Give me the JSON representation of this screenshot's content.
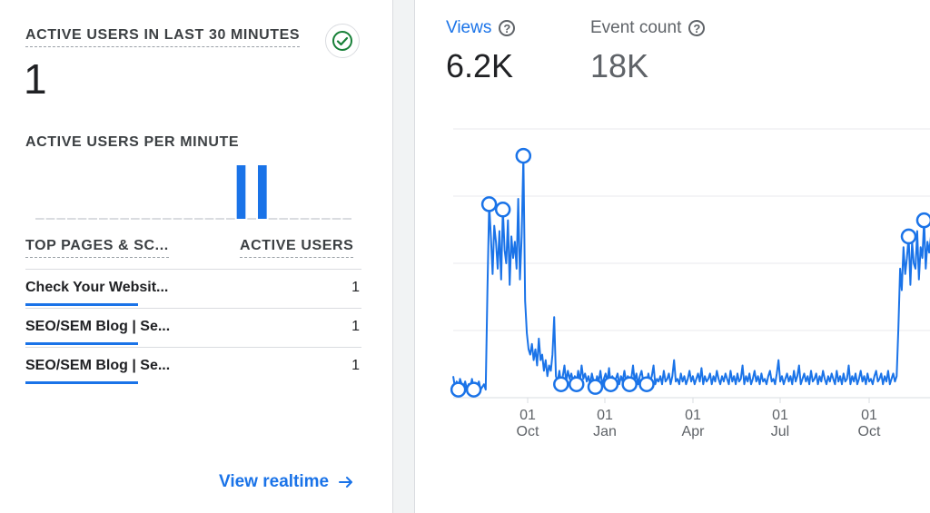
{
  "realtime": {
    "title": "ACTIVE USERS IN LAST 30 MINUTES",
    "active_users": "1",
    "status_icon": "check-circle-icon",
    "per_minute_title": "ACTIVE USERS PER MINUTE",
    "per_minute_counts": [
      0,
      0,
      0,
      0,
      0,
      0,
      0,
      0,
      0,
      0,
      0,
      0,
      0,
      0,
      0,
      0,
      0,
      0,
      0,
      1,
      0,
      1,
      0,
      0,
      0,
      0,
      0,
      0,
      0,
      0
    ],
    "table": {
      "col_page": "TOP PAGES & SC...",
      "col_users": "ACTIVE USERS",
      "rows": [
        {
          "name": "Check Your Websit...",
          "count": "1"
        },
        {
          "name": "SEO/SEM Blog | Se...",
          "count": "1"
        },
        {
          "name": "SEO/SEM Blog | Se...",
          "count": "1"
        }
      ]
    },
    "view_realtime_label": "View realtime",
    "accent_color": "#1a73e8"
  },
  "metrics": {
    "views_label": "Views",
    "views_value": "6.2K",
    "events_label": "Event count",
    "events_value": "18K"
  },
  "chart_data": {
    "type": "line",
    "series": [
      {
        "values": [
          8,
          4,
          6,
          3,
          7,
          5,
          4,
          6,
          3,
          5,
          4,
          7,
          3,
          5,
          4,
          6,
          3,
          4,
          5,
          3,
          40,
          72,
          60,
          46,
          64,
          58,
          48,
          62,
          44,
          70,
          55,
          50,
          66,
          42,
          60,
          52,
          58,
          48,
          74,
          44,
          60,
          90,
          36,
          24,
          18,
          16,
          20,
          14,
          18,
          12,
          22,
          14,
          16,
          10,
          14,
          8,
          12,
          10,
          16,
          30,
          8,
          6,
          10,
          5,
          8,
          12,
          6,
          10,
          7,
          9,
          6,
          8,
          5,
          10,
          6,
          12,
          7,
          9,
          6,
          8,
          5,
          9,
          6,
          4,
          8,
          6,
          10,
          5,
          7,
          9,
          6,
          11,
          5,
          8,
          6,
          7,
          9,
          5,
          8,
          6,
          10,
          6,
          8,
          5,
          7,
          12,
          6,
          9,
          5,
          8,
          10,
          6,
          7,
          5,
          9,
          6,
          8,
          12,
          5,
          7,
          6,
          8,
          5,
          10,
          6,
          7,
          9,
          5,
          8,
          14,
          6,
          7,
          5,
          9,
          6,
          8,
          5,
          7,
          10,
          6,
          8,
          5,
          7,
          9,
          6,
          11,
          5,
          8,
          6,
          7,
          9,
          5,
          8,
          6,
          10,
          7,
          5,
          8,
          6,
          9,
          7,
          5,
          10,
          6,
          8,
          5,
          9,
          6,
          7,
          12,
          5,
          8,
          6,
          9,
          5,
          7,
          10,
          6,
          8,
          5,
          9,
          6,
          7,
          5,
          8,
          10,
          6,
          7,
          5,
          9,
          14,
          6,
          8,
          5,
          7,
          9,
          6,
          8,
          5,
          10,
          6,
          8,
          12,
          5,
          7,
          9,
          6,
          8,
          5,
          10,
          6,
          7,
          9,
          5,
          8,
          6,
          10,
          7,
          5,
          8,
          6,
          9,
          7,
          5,
          10,
          6,
          8,
          5,
          9,
          6,
          7,
          12,
          5,
          8,
          6,
          9,
          5,
          7,
          10,
          6,
          8,
          5,
          9,
          6,
          7,
          5,
          8,
          10,
          6,
          7,
          9,
          5,
          8,
          6,
          10,
          5,
          7,
          9,
          6,
          8,
          26,
          48,
          40,
          56,
          46,
          52,
          60,
          42,
          58,
          50,
          48,
          62,
          44,
          56,
          52,
          66,
          48,
          58,
          54,
          60
        ]
      }
    ],
    "x_tick_labels": [
      {
        "day": "01",
        "month": "Oct"
      },
      {
        "day": "01",
        "month": "Jan"
      },
      {
        "day": "01",
        "month": "Apr"
      },
      {
        "day": "01",
        "month": "Jul"
      },
      {
        "day": "01",
        "month": "Oct"
      }
    ],
    "anomaly_markers": 13,
    "grid": true
  }
}
